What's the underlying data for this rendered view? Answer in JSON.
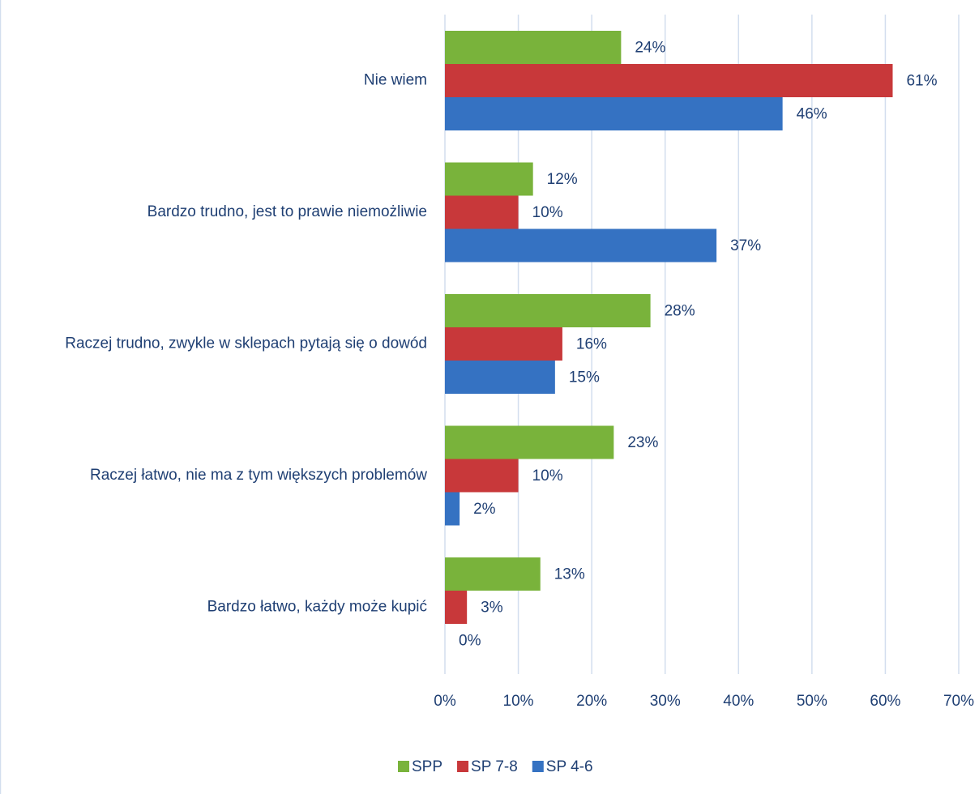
{
  "chart_data": {
    "type": "bar",
    "orientation": "horizontal",
    "categories": [
      "Nie wiem",
      "Bardzo trudno, jest to prawie niemożliwie",
      "Raczej trudno, zwykle w sklepach pytają się o dowód",
      "Raczej łatwo, nie ma z tym większych problemów",
      "Bardzo łatwo, każdy może kupić"
    ],
    "series": [
      {
        "name": "SPP",
        "color": "#79b33b",
        "values": [
          24,
          12,
          28,
          23,
          13
        ],
        "labels": [
          "24%",
          "12%",
          "28%",
          "23%",
          "13%"
        ]
      },
      {
        "name": "SP 7-8",
        "color": "#c8383a",
        "values": [
          61,
          10,
          16,
          10,
          3
        ],
        "labels": [
          "61%",
          "10%",
          "16%",
          "10%",
          "3%"
        ]
      },
      {
        "name": "SP 4-6",
        "color": "#3572c2",
        "values": [
          46,
          37,
          15,
          2,
          0
        ],
        "labels": [
          "46%",
          "37%",
          "15%",
          "2%",
          "0%"
        ]
      }
    ],
    "xlim": [
      0,
      70
    ],
    "x_ticks": [
      "0%",
      "10%",
      "20%",
      "30%",
      "40%",
      "50%",
      "60%",
      "70%"
    ],
    "grid": true,
    "legend_position": "bottom",
    "title": "",
    "xlabel": "",
    "ylabel": ""
  }
}
